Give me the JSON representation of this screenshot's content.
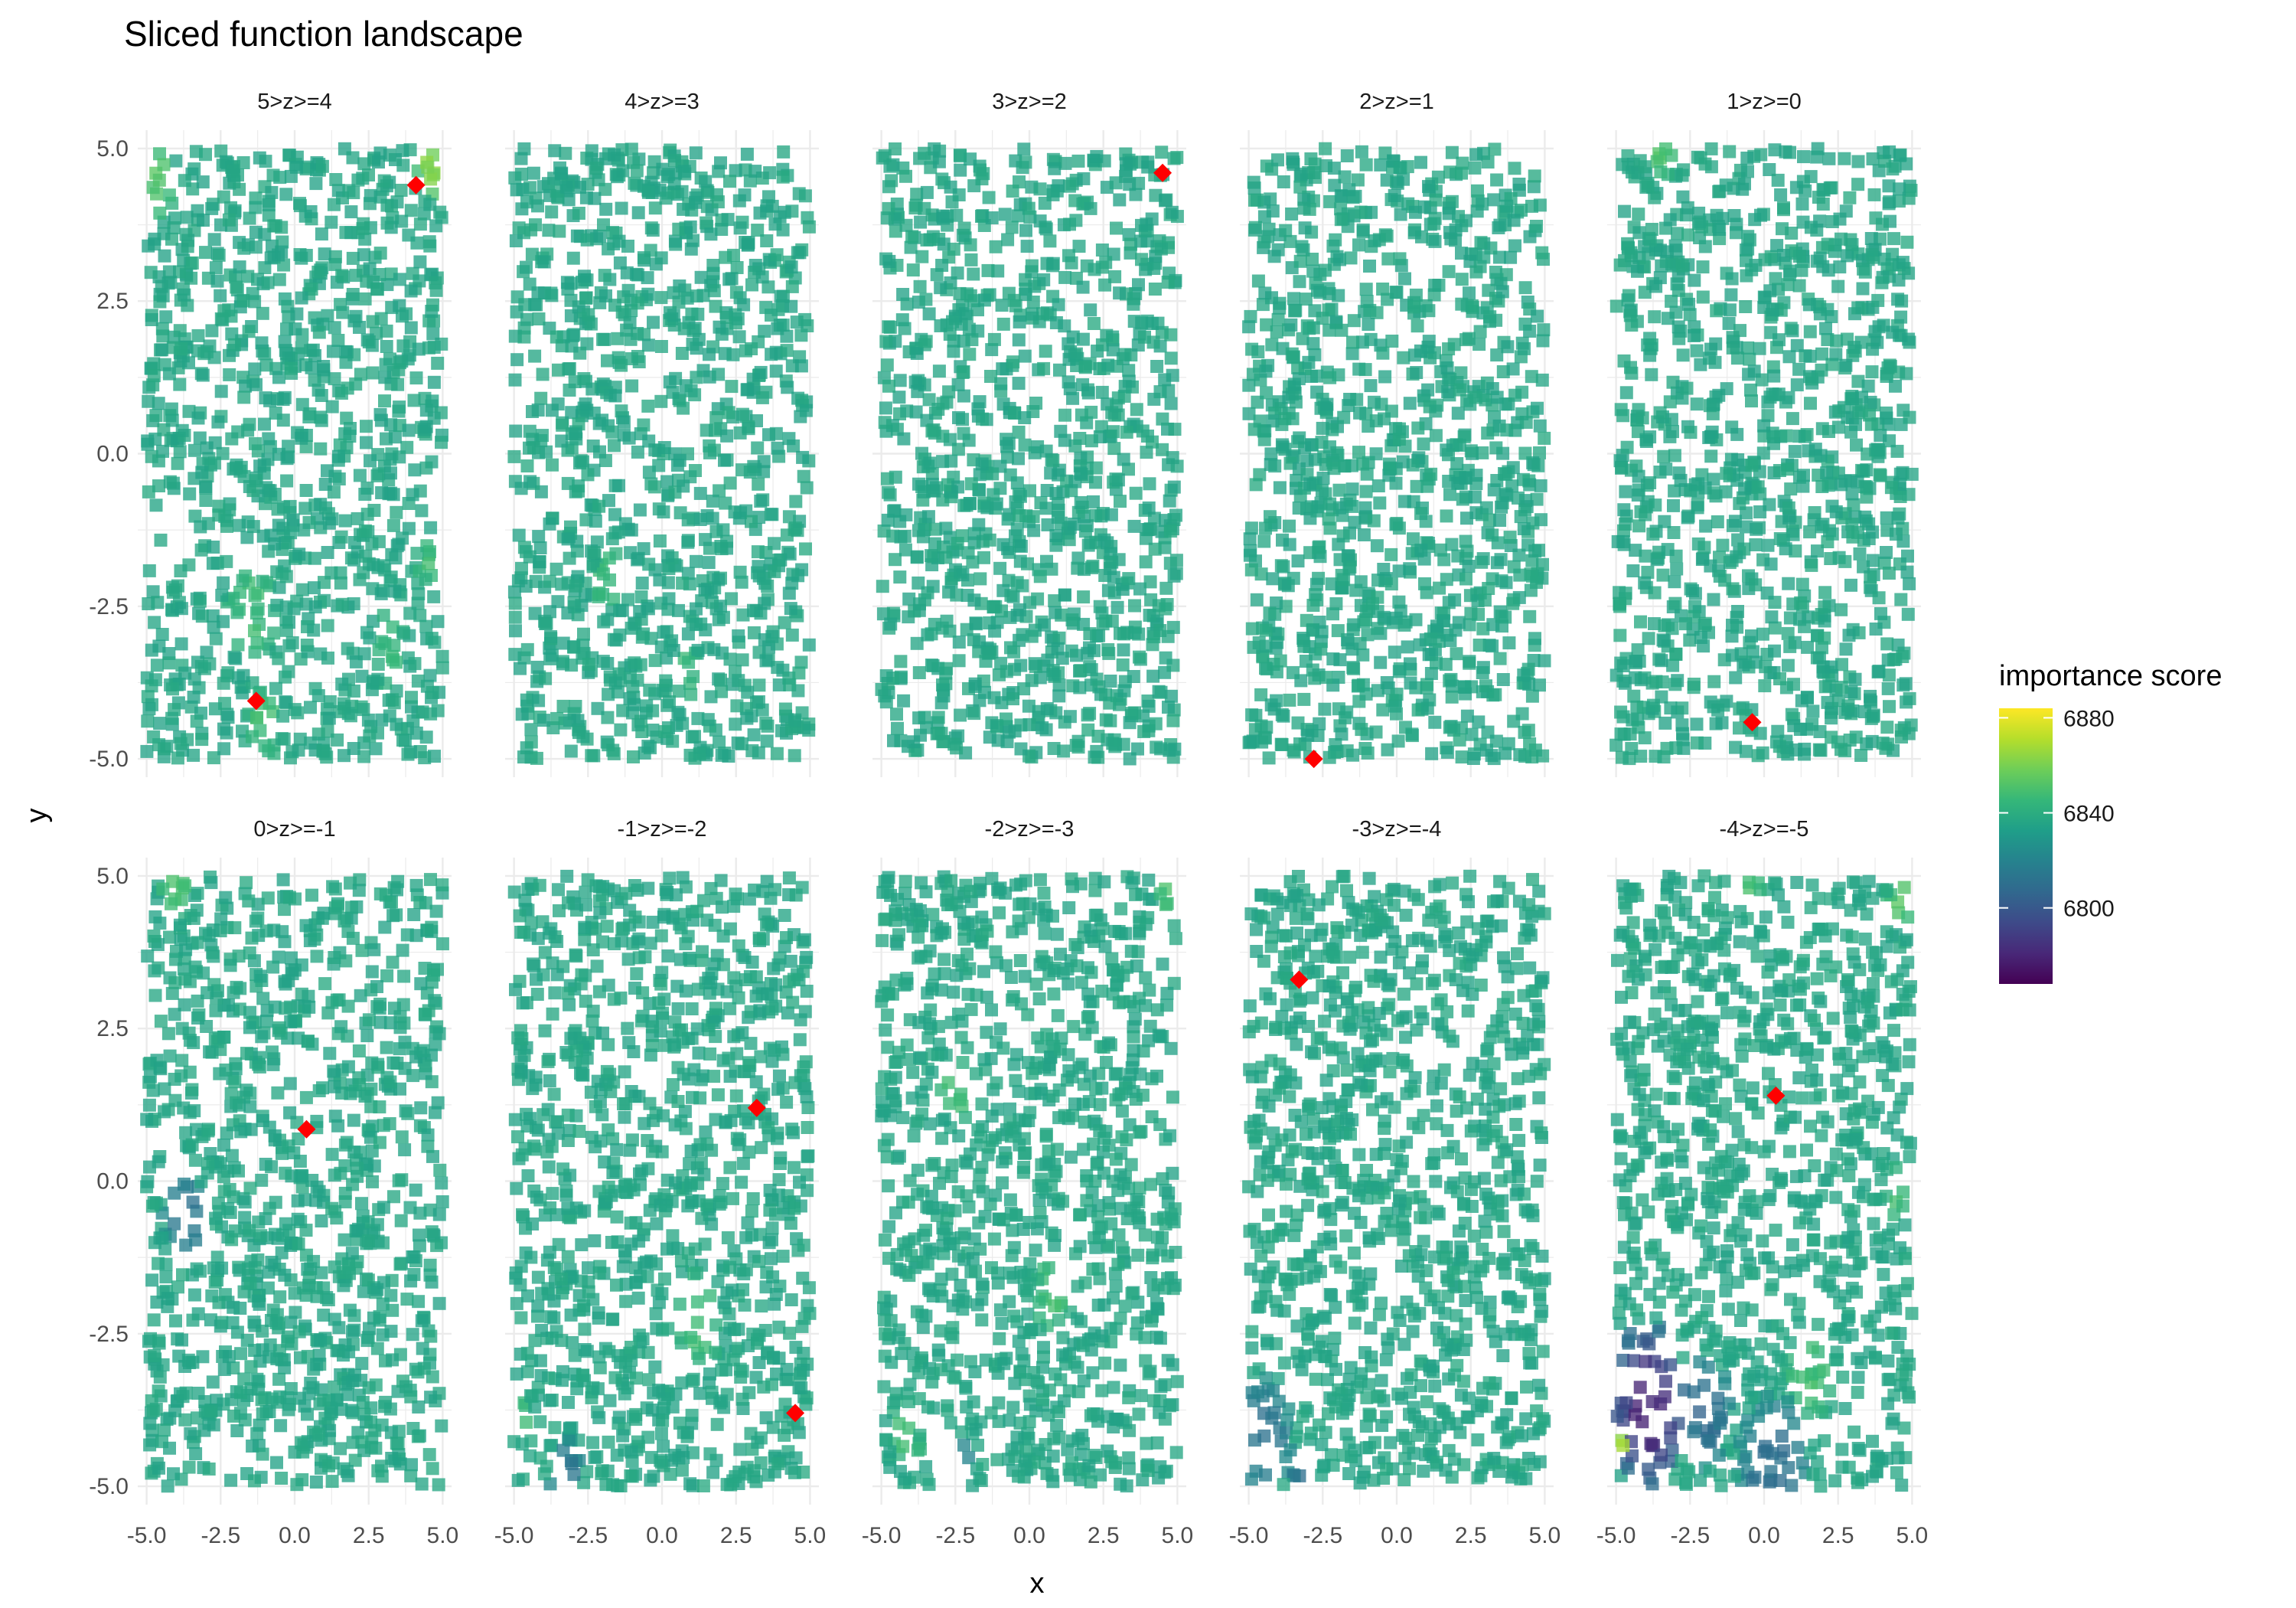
{
  "chart_data": {
    "type": "scatter",
    "title": "Sliced function landscape",
    "xlabel": "x",
    "ylabel": "y",
    "xlim": [
      -5,
      5
    ],
    "ylim": [
      -5,
      5
    ],
    "x_ticks": [
      -5.0,
      -2.5,
      0.0,
      2.5,
      5.0
    ],
    "y_ticks": [
      -5.0,
      -2.5,
      0.0,
      2.5,
      5.0
    ],
    "x_tick_labels": [
      "-5.0",
      "-2.5",
      "0.0",
      "2.5",
      "5.0"
    ],
    "y_tick_labels": [
      "-5.0",
      "-2.5",
      "0.0",
      "2.5",
      "5.0"
    ],
    "grid": true,
    "facets": [
      "5>z>=4",
      "4>z>=3",
      "3>z>=2",
      "2>z>=1",
      "1>z>=0",
      "0>z>=-1",
      "-1>z>=-2",
      "-2>z>=-3",
      "-3>z>=-4",
      "-4>z>=-5"
    ],
    "base_value": 6836,
    "highlight_points": [
      {
        "facet": "5>z>=4",
        "x": -1.3,
        "y": -4.05
      },
      {
        "facet": "5>z>=4",
        "x": 4.1,
        "y": 4.4
      },
      {
        "facet": "3>z>=2",
        "x": 4.5,
        "y": 4.6
      },
      {
        "facet": "2>z>=1",
        "x": -2.8,
        "y": -5.0
      },
      {
        "facet": "1>z>=0",
        "x": -0.4,
        "y": -4.4
      },
      {
        "facet": "0>z>=-1",
        "x": 0.4,
        "y": 0.85
      },
      {
        "facet": "-1>z>=-2",
        "x": 3.2,
        "y": 1.2
      },
      {
        "facet": "-1>z>=-2",
        "x": 4.5,
        "y": -3.8
      },
      {
        "facet": "-3>z>=-4",
        "x": -3.3,
        "y": 3.3
      },
      {
        "facet": "-4>z>=-5",
        "x": 0.4,
        "y": 1.4
      }
    ],
    "high_regions": [
      {
        "facet": "5>z>=4",
        "x": -4.6,
        "y": 4.4,
        "r": 0.6,
        "value": 6852
      },
      {
        "facet": "5>z>=4",
        "x": 4.6,
        "y": 4.6,
        "r": 0.5,
        "value": 6862
      },
      {
        "facet": "5>z>=4",
        "x": -1.5,
        "y": -2.6,
        "r": 0.9,
        "value": 6846
      },
      {
        "facet": "5>z>=4",
        "x": -1.0,
        "y": -4.4,
        "r": 0.6,
        "value": 6848
      },
      {
        "facet": "5>z>=4",
        "x": 3.2,
        "y": -3.2,
        "r": 0.6,
        "value": 6845
      },
      {
        "facet": "5>z>=4",
        "x": 4.6,
        "y": -1.8,
        "r": 0.5,
        "value": 6846
      },
      {
        "facet": "4>z>=3",
        "x": -1.8,
        "y": -2.0,
        "r": 0.5,
        "value": 6847
      },
      {
        "facet": "4>z>=3",
        "x": 0.8,
        "y": -3.6,
        "r": 0.5,
        "value": 6845
      },
      {
        "facet": "1>z>=0",
        "x": -3.5,
        "y": 4.9,
        "r": 0.5,
        "value": 6850
      },
      {
        "facet": "0>z>=-1",
        "x": -4.0,
        "y": 4.8,
        "r": 0.6,
        "value": 6850
      },
      {
        "facet": "-1>z>=-2",
        "x": 1.2,
        "y": -2.3,
        "r": 0.8,
        "value": 6847
      },
      {
        "facet": "-1>z>=-2",
        "x": -4.8,
        "y": -3.9,
        "r": 0.4,
        "value": 6846
      },
      {
        "facet": "-2>z>=-3",
        "x": -2.5,
        "y": 1.5,
        "r": 0.6,
        "value": 6848
      },
      {
        "facet": "-2>z>=-3",
        "x": 0.8,
        "y": -1.8,
        "r": 0.7,
        "value": 6847
      },
      {
        "facet": "-2>z>=-3",
        "x": -4.2,
        "y": -4.1,
        "r": 0.6,
        "value": 6846
      },
      {
        "facet": "-2>z>=-3",
        "x": 4.6,
        "y": 4.8,
        "r": 0.4,
        "value": 6850
      },
      {
        "facet": "-4>z>=-5",
        "x": 4.6,
        "y": 4.6,
        "r": 0.5,
        "value": 6852
      },
      {
        "facet": "-4>z>=-5",
        "x": -0.5,
        "y": 4.9,
        "r": 0.4,
        "value": 6850
      },
      {
        "facet": "-4>z>=-5",
        "x": 1.5,
        "y": -3.2,
        "r": 0.8,
        "value": 6848
      },
      {
        "facet": "-4>z>=-5",
        "x": 4.5,
        "y": -0.2,
        "r": 0.5,
        "value": 6846
      },
      {
        "facet": "-4>z>=-5",
        "x": -4.8,
        "y": -4.3,
        "r": 0.3,
        "value": 6866
      }
    ],
    "low_regions": [
      {
        "facet": "0>z>=-1",
        "x": -3.7,
        "y": -0.6,
        "r": 0.8,
        "value": 6812
      },
      {
        "facet": "-1>z>=-2",
        "x": -3.3,
        "y": -4.8,
        "r": 0.6,
        "value": 6812
      },
      {
        "facet": "-2>z>=-3",
        "x": -2.5,
        "y": -4.8,
        "r": 0.6,
        "value": 6812
      },
      {
        "facet": "-3>z>=-4",
        "x": -4.5,
        "y": -4.2,
        "r": 1.0,
        "value": 6812
      },
      {
        "facet": "-3>z>=-4",
        "x": -3.2,
        "y": -4.9,
        "r": 0.5,
        "value": 6810
      },
      {
        "facet": "-4>z>=-5",
        "x": -3.9,
        "y": -3.7,
        "r": 1.4,
        "value": 6782
      },
      {
        "facet": "-4>z>=-5",
        "x": -2.0,
        "y": -3.8,
        "r": 0.9,
        "value": 6808
      },
      {
        "facet": "-4>z>=-5",
        "x": 0.3,
        "y": -4.7,
        "r": 1.2,
        "value": 6810
      }
    ],
    "legend": {
      "title": "importance score",
      "range": [
        6768,
        6884
      ],
      "ticks": [
        6880,
        6840,
        6800
      ],
      "tick_labels": [
        "6880",
        "6840",
        "6800"
      ],
      "colormap": "viridis",
      "stops": [
        "#440154",
        "#482878",
        "#3e4a89",
        "#31688e",
        "#26828e",
        "#1f9e89",
        "#35b779",
        "#6ece58",
        "#b5de2b",
        "#fde725"
      ],
      "placement": "right"
    },
    "highlight_color": "#ff0000"
  }
}
